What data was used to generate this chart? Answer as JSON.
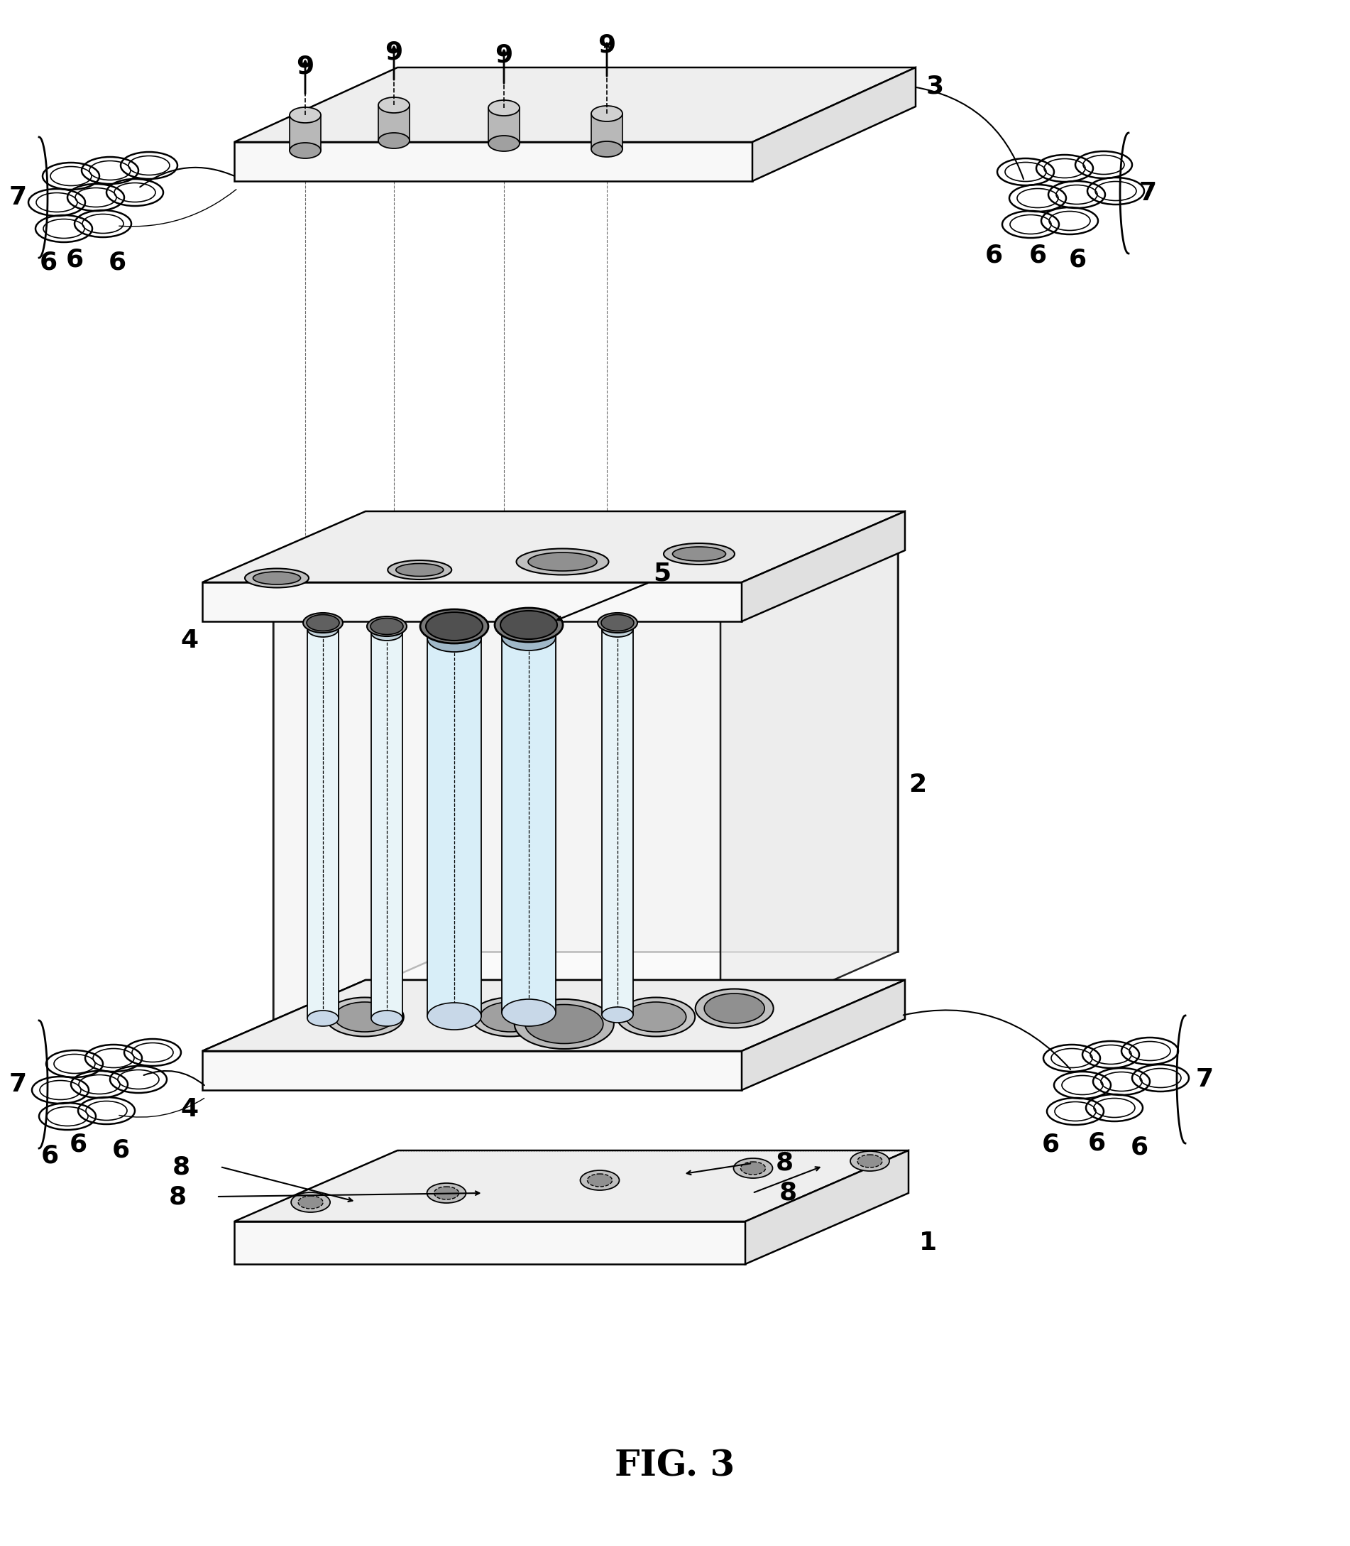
{
  "title": "FIG. 3",
  "bg_color": "#ffffff",
  "line_color": "#000000",
  "title_fontsize": 36,
  "label_fontsize": 26
}
